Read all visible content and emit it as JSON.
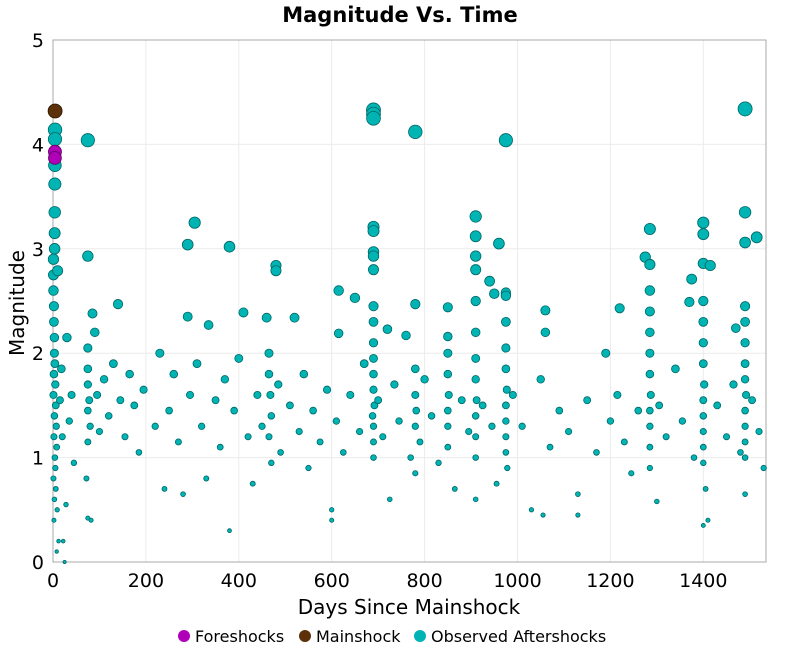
{
  "chart_data": {
    "type": "scatter",
    "title": "Magnitude Vs. Time",
    "xlabel": "Days Since Mainshock",
    "ylabel": "Magnitude",
    "xlim": [
      0,
      1535
    ],
    "ylim": [
      0,
      5
    ],
    "xticks": [
      "0",
      "200",
      "400",
      "600",
      "800",
      "1000",
      "1200",
      "1400"
    ],
    "yticks": [
      "0",
      "1",
      "2",
      "3",
      "4",
      "5"
    ],
    "grid": true,
    "legend_position": "bottom",
    "marker_size_encodes": "magnitude",
    "series": [
      {
        "name": "Foreshocks",
        "color": "#b000b8",
        "points": [
          [
            0,
            3.93
          ],
          [
            0,
            3.87
          ]
        ]
      },
      {
        "name": "Mainshock",
        "color": "#5c3008",
        "points": [
          [
            0,
            4.32
          ]
        ]
      },
      {
        "name": "Observed Aftershocks",
        "color": "#00b4b4",
        "points": [
          [
            0,
            4.14
          ],
          [
            0,
            4.05
          ],
          [
            0,
            3.8
          ],
          [
            0,
            3.62
          ],
          [
            0,
            3.35
          ],
          [
            0,
            3.15
          ],
          [
            0,
            3.0
          ],
          [
            1,
            2.9
          ],
          [
            1,
            2.75
          ],
          [
            1,
            2.6
          ],
          [
            2,
            2.45
          ],
          [
            2,
            2.3
          ],
          [
            3,
            2.15
          ],
          [
            3,
            2.0
          ],
          [
            4,
            1.9
          ],
          [
            2,
            1.8
          ],
          [
            5,
            1.7
          ],
          [
            1,
            1.6
          ],
          [
            6,
            1.5
          ],
          [
            3,
            1.4
          ],
          [
            7,
            1.3
          ],
          [
            2,
            1.2
          ],
          [
            8,
            1.1
          ],
          [
            4,
            1.0
          ],
          [
            5,
            0.9
          ],
          [
            1,
            0.8
          ],
          [
            6,
            0.7
          ],
          [
            3,
            0.6
          ],
          [
            9,
            0.5
          ],
          [
            2,
            0.4
          ],
          [
            12,
            0.2
          ],
          [
            8,
            0.1
          ],
          [
            25,
            0.0
          ],
          [
            15,
            1.55
          ],
          [
            20,
            1.2
          ],
          [
            18,
            1.85
          ],
          [
            10,
            2.79
          ],
          [
            30,
            2.15
          ],
          [
            35,
            1.35
          ],
          [
            40,
            1.6
          ],
          [
            45,
            0.95
          ],
          [
            28,
            0.55
          ],
          [
            22,
            0.2
          ],
          [
            75,
            4.04
          ],
          [
            75,
            2.93
          ],
          [
            85,
            2.38
          ],
          [
            90,
            2.2
          ],
          [
            75,
            2.05
          ],
          [
            75,
            1.85
          ],
          [
            75,
            1.7
          ],
          [
            78,
            1.55
          ],
          [
            75,
            1.45
          ],
          [
            80,
            1.3
          ],
          [
            75,
            1.15
          ],
          [
            72,
            0.8
          ],
          [
            75,
            0.42
          ],
          [
            82,
            0.4
          ],
          [
            95,
            1.6
          ],
          [
            100,
            1.25
          ],
          [
            110,
            1.75
          ],
          [
            120,
            1.4
          ],
          [
            130,
            1.9
          ],
          [
            140,
            2.47
          ],
          [
            145,
            1.55
          ],
          [
            155,
            1.2
          ],
          [
            165,
            1.8
          ],
          [
            175,
            1.5
          ],
          [
            185,
            1.05
          ],
          [
            195,
            1.65
          ],
          [
            220,
            1.3
          ],
          [
            230,
            2.0
          ],
          [
            240,
            0.7
          ],
          [
            250,
            1.45
          ],
          [
            260,
            1.8
          ],
          [
            270,
            1.15
          ],
          [
            280,
            0.65
          ],
          [
            290,
            3.04
          ],
          [
            290,
            2.35
          ],
          [
            295,
            1.6
          ],
          [
            305,
            3.25
          ],
          [
            310,
            1.9
          ],
          [
            320,
            1.3
          ],
          [
            330,
            0.8
          ],
          [
            335,
            2.27
          ],
          [
            350,
            1.55
          ],
          [
            360,
            1.1
          ],
          [
            370,
            1.75
          ],
          [
            380,
            3.02
          ],
          [
            380,
            0.3
          ],
          [
            390,
            1.45
          ],
          [
            400,
            1.95
          ],
          [
            410,
            2.39
          ],
          [
            420,
            1.2
          ],
          [
            430,
            0.75
          ],
          [
            440,
            1.6
          ],
          [
            450,
            1.3
          ],
          [
            460,
            2.34
          ],
          [
            465,
            2.0
          ],
          [
            465,
            1.8
          ],
          [
            468,
            1.6
          ],
          [
            470,
            1.4
          ],
          [
            465,
            1.2
          ],
          [
            470,
            0.95
          ],
          [
            480,
            2.84
          ],
          [
            480,
            2.79
          ],
          [
            485,
            1.7
          ],
          [
            490,
            1.05
          ],
          [
            510,
            1.5
          ],
          [
            520,
            2.34
          ],
          [
            530,
            1.25
          ],
          [
            540,
            1.8
          ],
          [
            550,
            0.9
          ],
          [
            560,
            1.45
          ],
          [
            575,
            1.15
          ],
          [
            590,
            1.65
          ],
          [
            600,
            0.4
          ],
          [
            600,
            0.5
          ],
          [
            610,
            1.35
          ],
          [
            615,
            2.6
          ],
          [
            615,
            2.19
          ],
          [
            625,
            1.05
          ],
          [
            640,
            1.6
          ],
          [
            650,
            2.53
          ],
          [
            660,
            1.25
          ],
          [
            670,
            1.9
          ],
          [
            690,
            4.33
          ],
          [
            690,
            4.29
          ],
          [
            690,
            4.25
          ],
          [
            690,
            3.21
          ],
          [
            690,
            3.17
          ],
          [
            690,
            2.97
          ],
          [
            690,
            2.93
          ],
          [
            690,
            2.8
          ],
          [
            690,
            2.45
          ],
          [
            690,
            2.3
          ],
          [
            690,
            2.1
          ],
          [
            690,
            1.95
          ],
          [
            690,
            1.8
          ],
          [
            690,
            1.65
          ],
          [
            692,
            1.5
          ],
          [
            688,
            1.4
          ],
          [
            690,
            1.3
          ],
          [
            690,
            1.15
          ],
          [
            690,
            1.0
          ],
          [
            700,
            1.55
          ],
          [
            710,
            1.2
          ],
          [
            720,
            2.23
          ],
          [
            725,
            0.6
          ],
          [
            735,
            1.7
          ],
          [
            745,
            1.35
          ],
          [
            760,
            2.17
          ],
          [
            770,
            1.0
          ],
          [
            780,
            4.12
          ],
          [
            780,
            2.47
          ],
          [
            780,
            1.85
          ],
          [
            780,
            1.6
          ],
          [
            782,
            1.45
          ],
          [
            780,
            1.3
          ],
          [
            780,
            0.85
          ],
          [
            790,
            1.15
          ],
          [
            800,
            1.75
          ],
          [
            815,
            1.4
          ],
          [
            830,
            0.95
          ],
          [
            850,
            2.44
          ],
          [
            850,
            2.16
          ],
          [
            850,
            2.0
          ],
          [
            850,
            1.8
          ],
          [
            852,
            1.6
          ],
          [
            850,
            1.45
          ],
          [
            850,
            1.3
          ],
          [
            850,
            1.1
          ],
          [
            865,
            0.7
          ],
          [
            880,
            1.55
          ],
          [
            895,
            1.25
          ],
          [
            910,
            3.31
          ],
          [
            910,
            3.12
          ],
          [
            910,
            2.93
          ],
          [
            910,
            2.8
          ],
          [
            910,
            2.5
          ],
          [
            910,
            2.2
          ],
          [
            910,
            1.95
          ],
          [
            910,
            1.75
          ],
          [
            912,
            1.55
          ],
          [
            910,
            1.4
          ],
          [
            910,
            1.2
          ],
          [
            910,
            1.0
          ],
          [
            910,
            0.6
          ],
          [
            925,
            1.5
          ],
          [
            940,
            2.69
          ],
          [
            945,
            1.3
          ],
          [
            950,
            2.57
          ],
          [
            955,
            0.75
          ],
          [
            960,
            3.05
          ],
          [
            975,
            4.04
          ],
          [
            975,
            2.58
          ],
          [
            975,
            2.55
          ],
          [
            975,
            2.3
          ],
          [
            975,
            2.05
          ],
          [
            975,
            1.85
          ],
          [
            977,
            1.65
          ],
          [
            975,
            1.5
          ],
          [
            975,
            1.35
          ],
          [
            975,
            1.2
          ],
          [
            975,
            1.05
          ],
          [
            978,
            0.9
          ],
          [
            990,
            1.6
          ],
          [
            1010,
            1.3
          ],
          [
            1030,
            0.5
          ],
          [
            1050,
            1.75
          ],
          [
            1055,
            0.45
          ],
          [
            1060,
            2.41
          ],
          [
            1060,
            2.2
          ],
          [
            1070,
            1.1
          ],
          [
            1090,
            1.45
          ],
          [
            1110,
            1.25
          ],
          [
            1130,
            0.45
          ],
          [
            1130,
            0.65
          ],
          [
            1150,
            1.55
          ],
          [
            1170,
            1.05
          ],
          [
            1190,
            2.0
          ],
          [
            1200,
            1.35
          ],
          [
            1215,
            1.6
          ],
          [
            1220,
            2.43
          ],
          [
            1230,
            1.15
          ],
          [
            1245,
            0.85
          ],
          [
            1260,
            1.45
          ],
          [
            1285,
            3.19
          ],
          [
            1275,
            2.92
          ],
          [
            1285,
            2.85
          ],
          [
            1285,
            2.6
          ],
          [
            1285,
            2.4
          ],
          [
            1285,
            2.2
          ],
          [
            1285,
            2.0
          ],
          [
            1285,
            1.8
          ],
          [
            1287,
            1.6
          ],
          [
            1285,
            1.45
          ],
          [
            1285,
            1.3
          ],
          [
            1285,
            1.1
          ],
          [
            1285,
            0.9
          ],
          [
            1300,
            0.58
          ],
          [
            1305,
            1.5
          ],
          [
            1320,
            1.2
          ],
          [
            1340,
            1.85
          ],
          [
            1355,
            1.35
          ],
          [
            1370,
            2.49
          ],
          [
            1375,
            2.71
          ],
          [
            1380,
            1.0
          ],
          [
            1400,
            3.25
          ],
          [
            1400,
            3.14
          ],
          [
            1400,
            2.86
          ],
          [
            1415,
            2.84
          ],
          [
            1400,
            2.5
          ],
          [
            1400,
            2.3
          ],
          [
            1400,
            2.1
          ],
          [
            1400,
            1.9
          ],
          [
            1402,
            1.7
          ],
          [
            1400,
            1.55
          ],
          [
            1400,
            1.4
          ],
          [
            1400,
            1.25
          ],
          [
            1400,
            1.1
          ],
          [
            1400,
            0.95
          ],
          [
            1405,
            0.7
          ],
          [
            1400,
            0.35
          ],
          [
            1410,
            0.4
          ],
          [
            1430,
            1.5
          ],
          [
            1450,
            1.2
          ],
          [
            1465,
            1.7
          ],
          [
            1470,
            2.24
          ],
          [
            1480,
            1.05
          ],
          [
            1490,
            4.34
          ],
          [
            1490,
            3.35
          ],
          [
            1490,
            3.06
          ],
          [
            1490,
            2.45
          ],
          [
            1490,
            2.3
          ],
          [
            1490,
            2.1
          ],
          [
            1490,
            1.9
          ],
          [
            1490,
            1.75
          ],
          [
            1492,
            1.6
          ],
          [
            1490,
            1.45
          ],
          [
            1490,
            1.3
          ],
          [
            1490,
            1.15
          ],
          [
            1490,
            1.0
          ],
          [
            1490,
            0.65
          ],
          [
            1515,
            3.11
          ],
          [
            1505,
            1.55
          ],
          [
            1520,
            1.25
          ],
          [
            1530,
            0.9
          ]
        ]
      }
    ]
  }
}
